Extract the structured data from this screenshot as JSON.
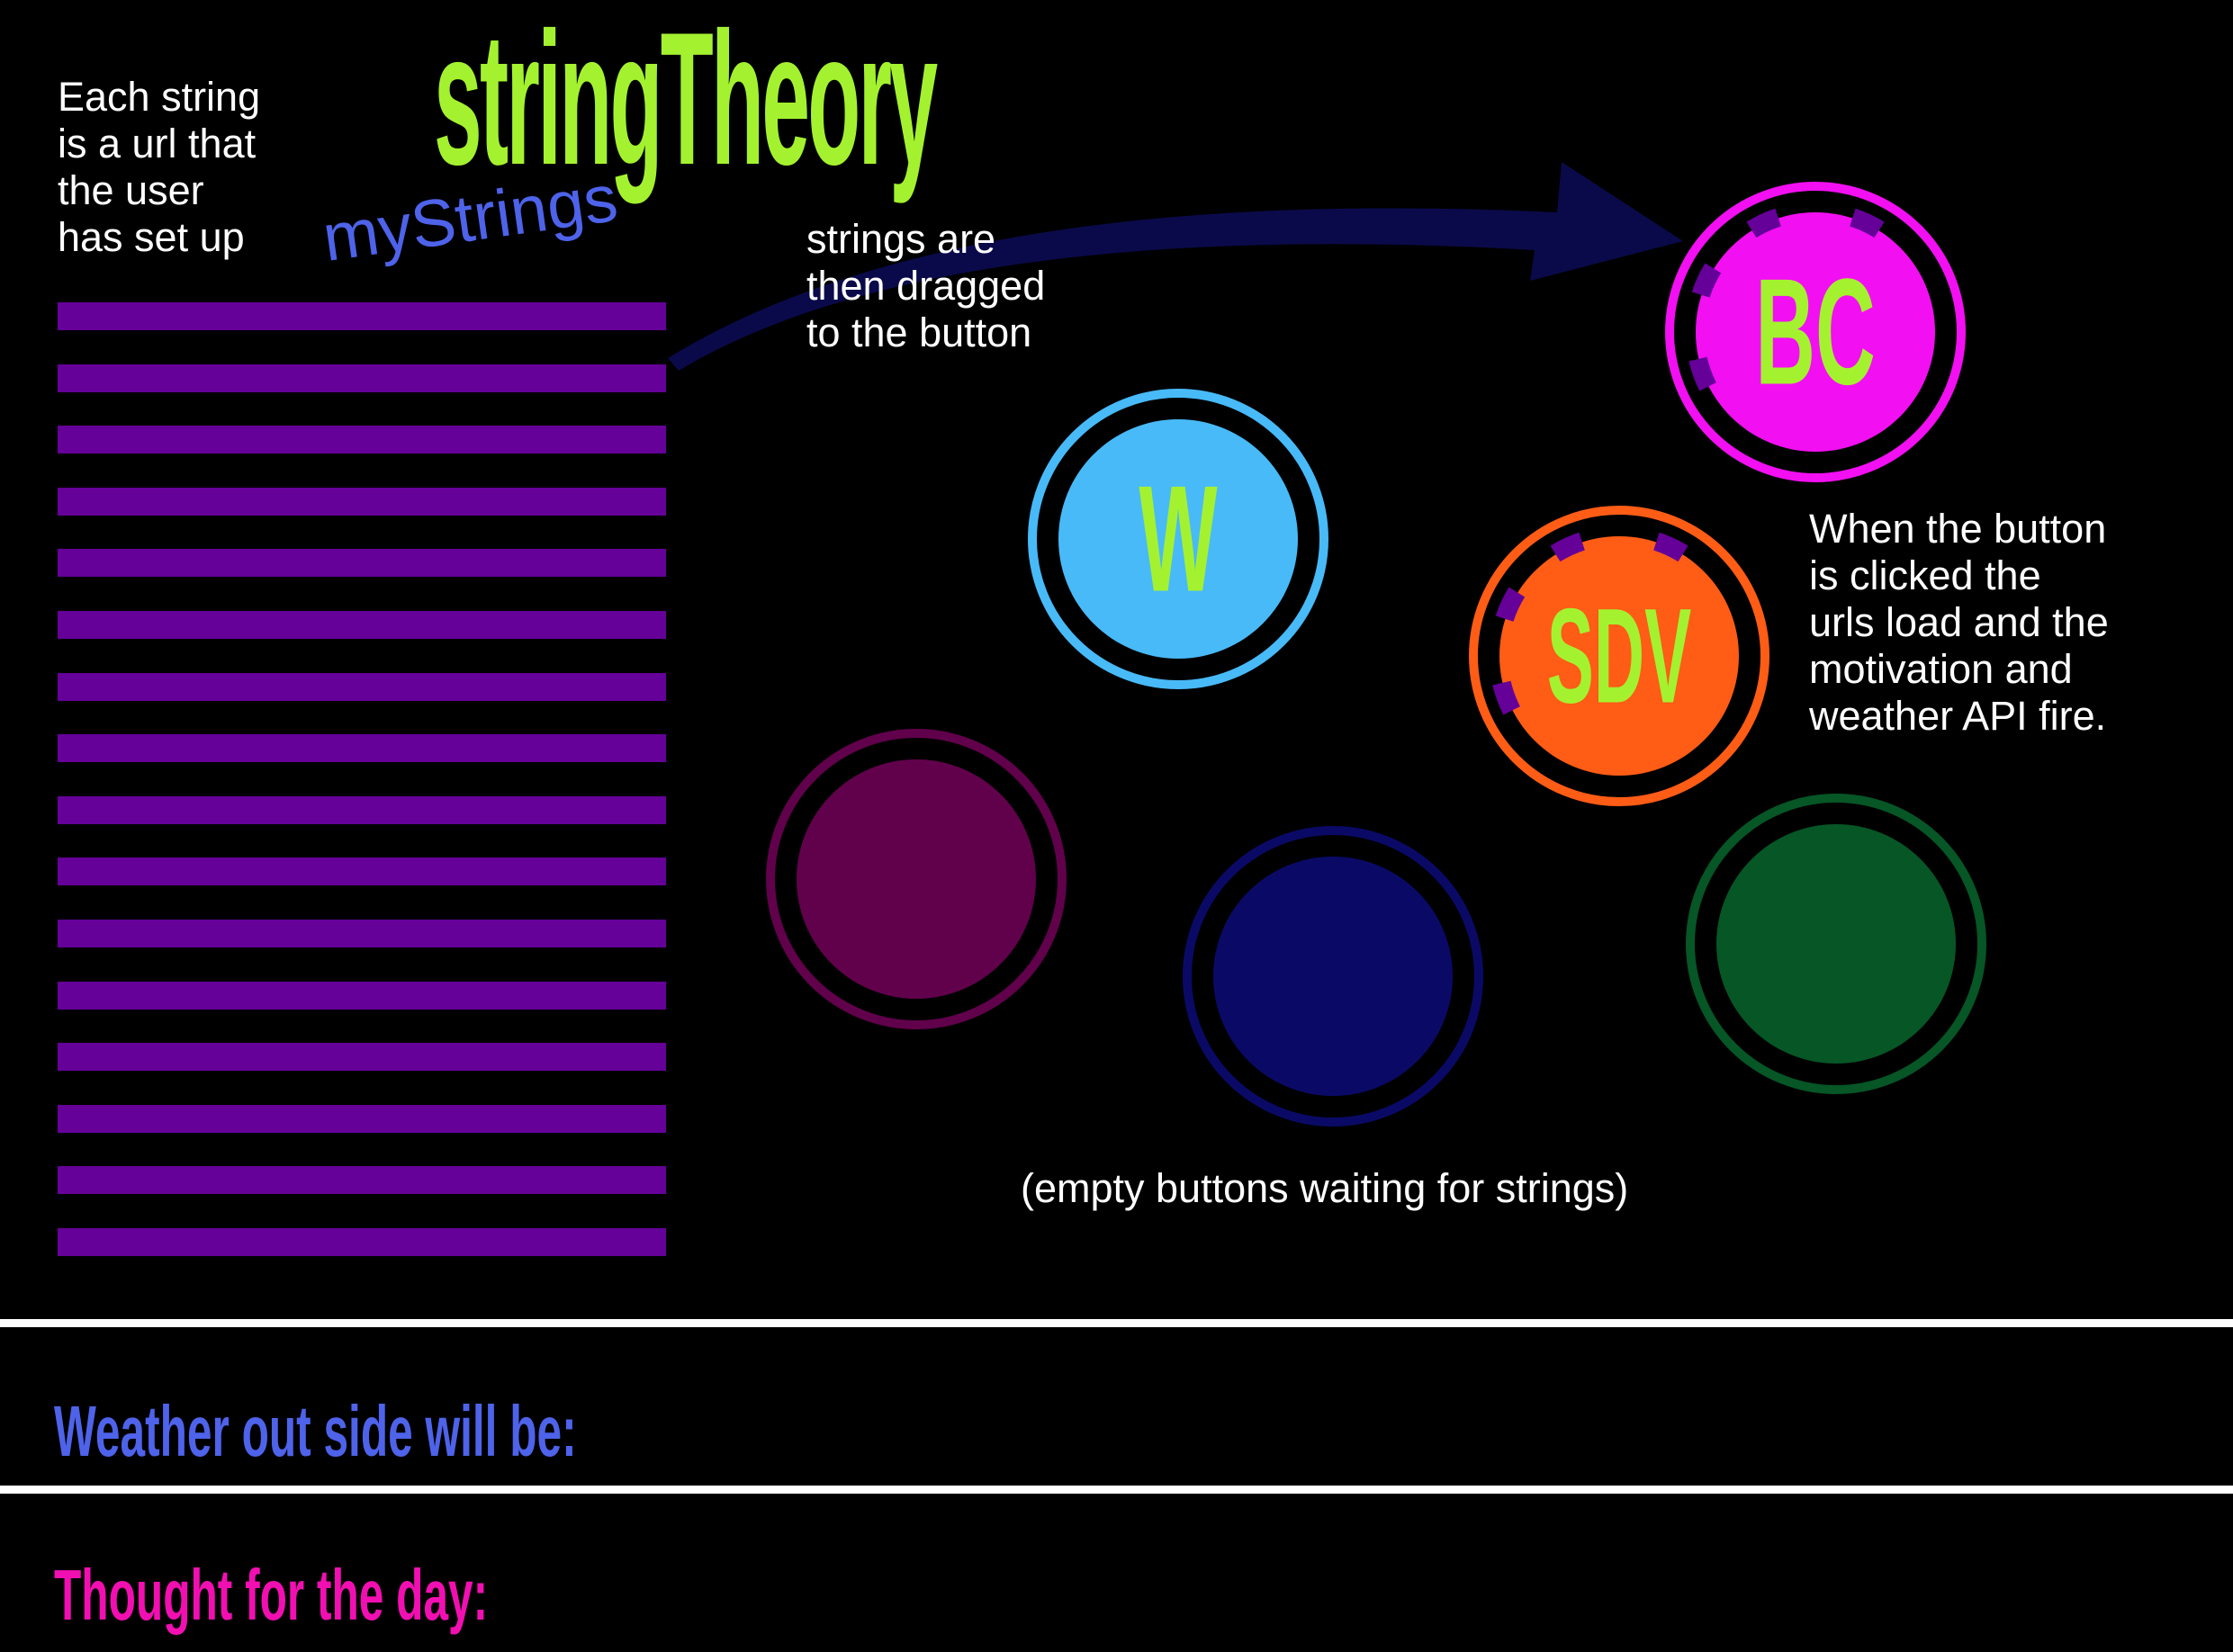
{
  "app": {
    "title": "stringTheory"
  },
  "notes": {
    "intro": "Each string\nis a url that\nthe user\nhas set up",
    "drag": "strings are\nthen dragged\nto the button",
    "click": "When the button\nis clicked the\nurls load and the\nmotivation and\nweather API fire.",
    "empty": "(empty buttons waiting for strings)"
  },
  "my_strings": {
    "heading": "myStrings",
    "color": "#650099",
    "count": 16
  },
  "buttons": [
    {
      "name": "bc",
      "label": "BC",
      "color": "#f20ff2",
      "has_strings": true
    },
    {
      "name": "w",
      "label": "W",
      "color": "#48baf8",
      "has_strings": false
    },
    {
      "name": "sdv",
      "label": "SDV",
      "color": "#ff5c16",
      "has_strings": true
    },
    {
      "name": "empty-1",
      "label": "",
      "color": "#61014b",
      "has_strings": false
    },
    {
      "name": "empty-2",
      "label": "",
      "color": "#0a0a66",
      "has_strings": false
    },
    {
      "name": "empty-3",
      "label": "",
      "color": "#065626",
      "has_strings": false
    }
  ],
  "outputs": {
    "weather_label": "Weather out side will be:",
    "thought_label": "Thought for the day:"
  },
  "colors": {
    "background": "#000000",
    "title": "#a4f22f",
    "my_strings_heading": "#4e63ea",
    "arrow": "#0a0a4a",
    "weather": "#4e63ea",
    "thought": "#f20fb2",
    "text": "#ffffff"
  }
}
